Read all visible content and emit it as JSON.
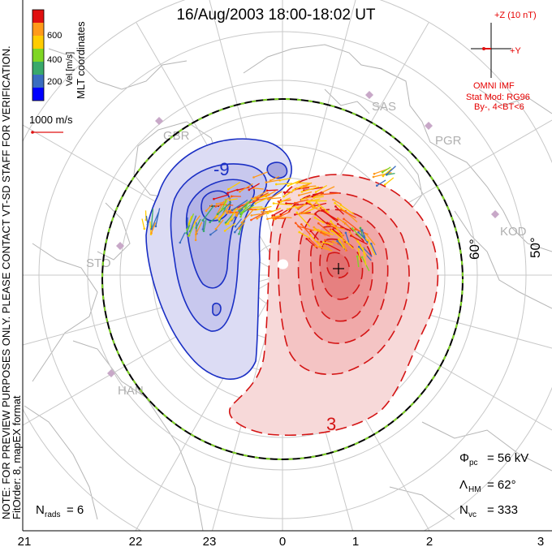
{
  "title": "16/Aug/2003 18:00-18:02 UT",
  "colorbar": {
    "label": "Vel [m/s]",
    "ticks": [
      "600",
      "400",
      "200"
    ],
    "colors": [
      "#0000ff",
      "#3a6dc0",
      "#39a96b",
      "#7fd624",
      "#ffcc00",
      "#ff9a1a",
      "#ff5a14",
      "#e01010"
    ]
  },
  "coordinates_label": "MLT coordinates",
  "vector_scale": "1000 m/s",
  "imf": {
    "z_label": "+Z (10 nT)",
    "y_label": "+Y",
    "source": "OMNI IMF",
    "model": "Stat Mod: RG96",
    "condition": "By-, 4<BT<6"
  },
  "note_left": "NOTE: FOR PREVIEW PURPOSES ONLY. PLEASE CONTACT VT-SD STAFF FOR VERIFICATION.",
  "fit_order": "FitOrder: 8, mapEX format",
  "radars": [
    "SAS",
    "PGR",
    "KOD",
    "GBR",
    "STO",
    "HAN"
  ],
  "latitude_labels": [
    "60°",
    "50°"
  ],
  "contour_labels": [
    "-9",
    "3"
  ],
  "stats": {
    "phi_pc": "= 56 kV",
    "lambda_hm": "= 62°",
    "n_vc": "= 333",
    "n_rads": "= 6"
  },
  "mlt_labels": [
    "21",
    "22",
    "23",
    "0",
    "1",
    "2",
    "3"
  ]
}
